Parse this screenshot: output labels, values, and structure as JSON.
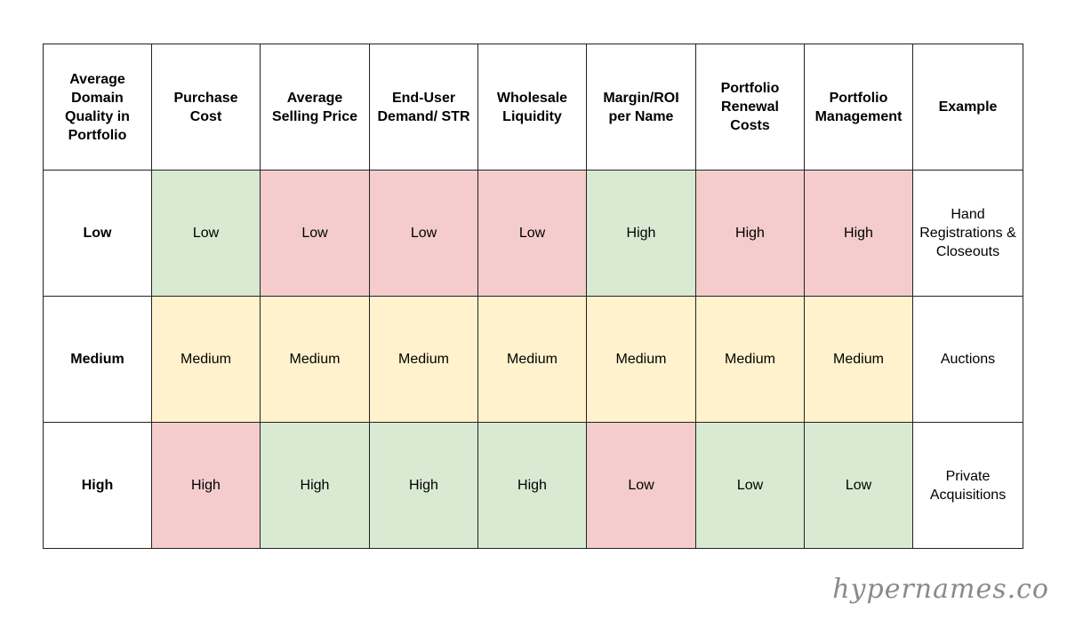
{
  "table": {
    "headers": [
      "Average Domain Quality in Portfolio",
      "Purchase Cost",
      "Average Selling Price",
      "End-User Demand/ STR",
      "Wholesale Liquidity",
      "Margin/ROI per Name",
      "Portfolio Renewal Costs",
      "Portfolio Management",
      "Example"
    ],
    "rows": [
      {
        "label": "Low",
        "cells": [
          {
            "value": "Low",
            "color": "green"
          },
          {
            "value": "Low",
            "color": "red"
          },
          {
            "value": "Low",
            "color": "red"
          },
          {
            "value": "Low",
            "color": "red"
          },
          {
            "value": "High",
            "color": "green"
          },
          {
            "value": "High",
            "color": "red"
          },
          {
            "value": "High",
            "color": "red"
          }
        ],
        "example": "Hand Registrations & Closeouts"
      },
      {
        "label": "Medium",
        "cells": [
          {
            "value": "Medium",
            "color": "yellow"
          },
          {
            "value": "Medium",
            "color": "yellow"
          },
          {
            "value": "Medium",
            "color": "yellow"
          },
          {
            "value": "Medium",
            "color": "yellow"
          },
          {
            "value": "Medium",
            "color": "yellow"
          },
          {
            "value": "Medium",
            "color": "yellow"
          },
          {
            "value": "Medium",
            "color": "yellow"
          }
        ],
        "example": "Auctions"
      },
      {
        "label": "High",
        "cells": [
          {
            "value": "High",
            "color": "red"
          },
          {
            "value": "High",
            "color": "green"
          },
          {
            "value": "High",
            "color": "green"
          },
          {
            "value": "High",
            "color": "green"
          },
          {
            "value": "Low",
            "color": "red"
          },
          {
            "value": "Low",
            "color": "green"
          },
          {
            "value": "Low",
            "color": "green"
          }
        ],
        "example": "Private Acquisitions"
      }
    ]
  },
  "colors": {
    "green": "#d9ead3",
    "red": "#f4cccc",
    "yellow": "#fff2cc"
  },
  "watermark": "hypernames.co"
}
